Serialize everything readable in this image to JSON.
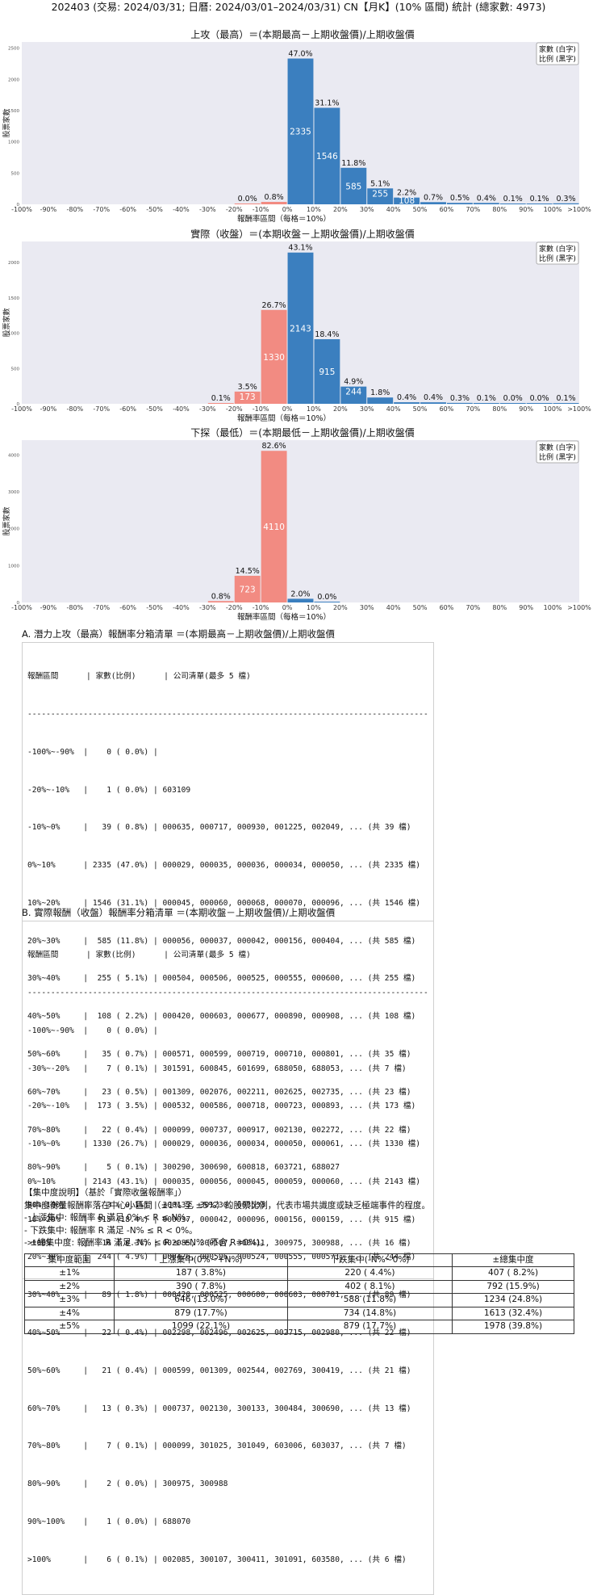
{
  "page_title": "202403 (交易: 2024/03/31; 日曆: 2024/03/01–2024/03/31) CN【月K】(10% 區間) 統計 (總家數: 4973)",
  "legend": {
    "line1": "家數 (白字)",
    "line2": "比例 (黑字)"
  },
  "colors": {
    "positive": "#3b7fbf",
    "negative": "#f28b82",
    "plot_bg": "#eaeaf2"
  },
  "bins": [
    "-100%",
    "-90%",
    "-80%",
    "-70%",
    "-60%",
    "-50%",
    "-40%",
    "-30%",
    "-20%",
    "-10%",
    "0%",
    "10%",
    "20%",
    "30%",
    "40%",
    "50%",
    "60%",
    "70%",
    "80%",
    "90%",
    "100%",
    ">100%"
  ],
  "chart_data": [
    {
      "type": "bar",
      "title": "上攻（最高）＝(本期最高－上期收盤價)/上期收盤價",
      "xlabel": "報酬率區間（每格＝10%）",
      "ylabel": "股票家數",
      "yticks": [
        0,
        500,
        1000,
        1500,
        2000,
        2500
      ],
      "ylim": [
        0,
        2600
      ],
      "bars": [
        {
          "bin": "-20%~-10%",
          "count": 1,
          "pct": "0.0%"
        },
        {
          "bin": "-10%~0%",
          "count": 39,
          "pct": "0.8%"
        },
        {
          "bin": "0%~10%",
          "count": 2335,
          "pct": "47.0%"
        },
        {
          "bin": "10%~20%",
          "count": 1546,
          "pct": "31.1%"
        },
        {
          "bin": "20%~30%",
          "count": 585,
          "pct": "11.8%"
        },
        {
          "bin": "30%~40%",
          "count": 255,
          "pct": "5.1%"
        },
        {
          "bin": "40%~50%",
          "count": 108,
          "pct": "2.2%"
        },
        {
          "bin": "50%~60%",
          "count": 35,
          "pct": "0.7%"
        },
        {
          "bin": "60%~70%",
          "count": 23,
          "pct": "0.5%"
        },
        {
          "bin": "70%~80%",
          "count": 22,
          "pct": "0.4%"
        },
        {
          "bin": "80%~90%",
          "count": 5,
          "pct": "0.1%"
        },
        {
          "bin": "90%~100%",
          "count": 3,
          "pct": "0.1%"
        },
        {
          "bin": ">100%",
          "count": 16,
          "pct": "0.3%"
        }
      ]
    },
    {
      "type": "bar",
      "title": "實際（收盤）＝(本期收盤－上期收盤價)/上期收盤價",
      "xlabel": "報酬率區間（每格＝10%）",
      "ylabel": "股票家數",
      "yticks": [
        0,
        500,
        1000,
        1500,
        2000
      ],
      "ylim": [
        0,
        2300
      ],
      "bars": [
        {
          "bin": "-30%~-20%",
          "count": 7,
          "pct": "0.1%"
        },
        {
          "bin": "-20%~-10%",
          "count": 173,
          "pct": "3.5%"
        },
        {
          "bin": "-10%~0%",
          "count": 1330,
          "pct": "26.7%"
        },
        {
          "bin": "0%~10%",
          "count": 2143,
          "pct": "43.1%"
        },
        {
          "bin": "10%~20%",
          "count": 915,
          "pct": "18.4%"
        },
        {
          "bin": "20%~30%",
          "count": 244,
          "pct": "4.9%"
        },
        {
          "bin": "30%~40%",
          "count": 89,
          "pct": "1.8%"
        },
        {
          "bin": "40%~50%",
          "count": 22,
          "pct": "0.4%"
        },
        {
          "bin": "50%~60%",
          "count": 21,
          "pct": "0.4%"
        },
        {
          "bin": "60%~70%",
          "count": 13,
          "pct": "0.3%"
        },
        {
          "bin": "70%~80%",
          "count": 7,
          "pct": "0.1%"
        },
        {
          "bin": "80%~90%",
          "count": 2,
          "pct": "0.0%"
        },
        {
          "bin": "90%~100%",
          "count": 1,
          "pct": "0.0%"
        },
        {
          "bin": ">100%",
          "count": 6,
          "pct": "0.1%"
        }
      ]
    },
    {
      "type": "bar",
      "title": "下探（最低）＝(本期最低－上期收盤價)/上期收盤價",
      "xlabel": "報酬率區間（每格＝10%）",
      "ylabel": "股票家數",
      "yticks": [
        0,
        1000,
        2000,
        3000,
        4000
      ],
      "ylim": [
        0,
        4400
      ],
      "bars": [
        {
          "bin": "-30%~-20%",
          "count": 38,
          "pct": "0.8%"
        },
        {
          "bin": "-20%~-10%",
          "count": 723,
          "pct": "14.5%"
        },
        {
          "bin": "-10%~0%",
          "count": 4110,
          "pct": "82.6%"
        },
        {
          "bin": "0%~10%",
          "count": 100,
          "pct": "2.0%"
        },
        {
          "bin": "10%~20%",
          "count": 2,
          "pct": "0.0%"
        }
      ]
    }
  ],
  "list_a": {
    "title": "A. 潛力上攻（最高）報酬率分箱清單 ＝(本期最高－上期收盤價)/上期收盤價",
    "lines": [
      "報酬區間      | 家數(比例)      | 公司清單(最多 5 檔)",
      "--------------------------------------------------------------------------------------",
      "-100%~-90%  |    0 ( 0.0%) |",
      "-20%~-10%   |    1 ( 0.0%) | 603109",
      "-10%~0%     |   39 ( 0.8%) | 000635, 000717, 000930, 001225, 002049, ... (共 39 檔)",
      "0%~10%      | 2335 (47.0%) | 000029, 000035, 000036, 000034, 000050, ... (共 2335 檔)",
      "10%~20%     | 1546 (31.1%) | 000045, 000060, 000068, 000070, 000096, ... (共 1546 檔)",
      "20%~30%     |  585 (11.8%) | 000056, 000037, 000042, 000156, 000404, ... (共 585 檔)",
      "30%~40%     |  255 ( 5.1%) | 000504, 000506, 000525, 000555, 000600, ... (共 255 檔)",
      "40%~50%     |  108 ( 2.2%) | 000420, 000603, 000677, 000890, 000908, ... (共 108 檔)",
      "50%~60%     |   35 ( 0.7%) | 000571, 000599, 000719, 000710, 000801, ... (共 35 檔)",
      "60%~70%     |   23 ( 0.5%) | 001309, 002076, 002211, 002625, 002735, ... (共 23 檔)",
      "70%~80%     |   22 ( 0.4%) | 000099, 000737, 000917, 002130, 002272, ... (共 22 檔)",
      "80%~90%     |    5 ( 0.1%) | 300290, 300690, 600818, 603721, 688027",
      "90%~100%    |    3 ( 0.1%) | 300133, 301230, 603533",
      ">100%       |   16 ( 0.3%) | 002085, 300107, 300411, 300975, 300988, ... (共 16 檔)"
    ]
  },
  "list_b": {
    "title": "B. 實際報酬（收盤）報酬率分箱清單 ＝(本期收盤－上期收盤價)/上期收盤價",
    "lines": [
      "報酬區間      | 家數(比例)      | 公司清單(最多 5 檔)",
      "--------------------------------------------------------------------------------------",
      "-100%~-90%  |    0 ( 0.0%) |",
      "-30%~-20%   |    7 ( 0.1%) | 301591, 600845, 601699, 688050, 688053, ... (共 7 檔)",
      "-20%~-10%   |  173 ( 3.5%) | 000532, 000586, 000718, 000723, 000893, ... (共 173 檔)",
      "-10%~0%     | 1330 (26.7%) | 000029, 000036, 000034, 000050, 000061, ... (共 1330 檔)",
      "0%~10%      | 2143 (43.1%) | 000035, 000056, 000045, 000059, 000060, ... (共 2143 檔)",
      "10%~20%     |  915 (18.4%) | 000037, 000042, 000096, 000156, 000159, ... (共 915 檔)",
      "20%~30%     |  244 ( 4.9%) | 000426, 000506, 000524, 000555, 000571, ... (共 244 檔)",
      "30%~40%     |   89 ( 1.8%) | 000420, 000525, 000600, 000603, 000701, ... (共 89 檔)",
      "40%~50%     |   22 ( 0.4%) | 002298, 002496, 002625, 002715, 002980, ... (共 22 檔)",
      "50%~60%     |   21 ( 0.4%) | 000599, 001309, 002544, 002769, 300419, ... (共 21 檔)",
      "60%~70%     |   13 ( 0.3%) | 000737, 002130, 300133, 300484, 300690, ... (共 13 檔)",
      "70%~80%     |    7 ( 0.1%) | 000099, 301025, 301049, 603006, 603037, ... (共 7 檔)",
      "80%~90%     |    2 ( 0.0%) | 300975, 300988",
      "90%~100%    |    1 ( 0.0%) | 688070",
      ">100%       |    6 ( 0.1%) | 002085, 300107, 300411, 301091, 603580, ... (共 6 檔)"
    ]
  },
  "concentration": {
    "heading": "【集中度說明】（基於「實際收盤報酬率」）",
    "desc": "集中度衡量報酬率落在中心小區間（±1% 至 ±5%）的股票比例，代表市場共識度或缺乏極端事件的程度。",
    "bullet_up": " - 上漲集中: 報酬率 R 滿足 0% < R ≤ N%。",
    "bullet_down": " - 下跌集中: 報酬率 R 滿足 -N% ≤ R < 0%。",
    "bullet_total": " - ±總集中度: 報酬率 R 滿足 -N% ≤ R ≤ +N% (不含 R=0%)。",
    "headers": [
      "集中度範圍",
      "上漲集中(0%~+N%)",
      "下跌集中(-N%~0%)",
      "±總集中度"
    ],
    "rows": [
      [
        "±1%",
        "187 ( 3.8%)",
        "220 ( 4.4%)",
        "407 ( 8.2%)"
      ],
      [
        "±2%",
        "390 ( 7.8%)",
        "402 ( 8.1%)",
        "792 (15.9%)"
      ],
      [
        "±3%",
        "646 (13.0%)",
        "588 (11.8%)",
        "1234 (24.8%)"
      ],
      [
        "±4%",
        "879 (17.7%)",
        "734 (14.8%)",
        "1613 (32.4%)"
      ],
      [
        "±5%",
        "1099 (22.1%)",
        "879 (17.7%)",
        "1978 (39.8%)"
      ]
    ]
  }
}
